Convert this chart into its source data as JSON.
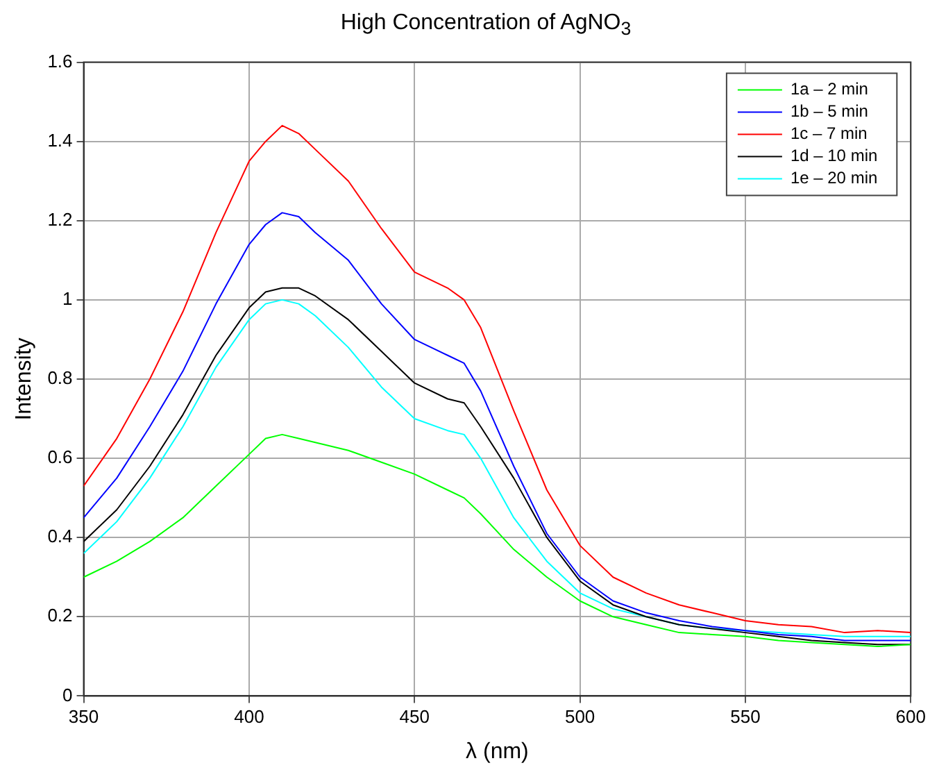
{
  "chart_data": {
    "type": "line",
    "title": "High Concentration of AgNO$_{3}$",
    "xlabel": "λ (nm)",
    "ylabel": "Intensity",
    "x": [
      350,
      360,
      370,
      380,
      390,
      400,
      405,
      410,
      415,
      420,
      430,
      440,
      450,
      460,
      465,
      470,
      480,
      490,
      500,
      510,
      520,
      530,
      540,
      550,
      560,
      570,
      580,
      590,
      600
    ],
    "series": [
      {
        "name": "1a – 2 min",
        "color": "#00ff00",
        "values": [
          0.3,
          0.34,
          0.39,
          0.45,
          0.53,
          0.61,
          0.65,
          0.66,
          0.65,
          0.64,
          0.62,
          0.59,
          0.56,
          0.52,
          0.5,
          0.46,
          0.37,
          0.3,
          0.24,
          0.2,
          0.18,
          0.16,
          0.155,
          0.15,
          0.14,
          0.135,
          0.13,
          0.125,
          0.13
        ]
      },
      {
        "name": "1b – 5 min",
        "color": "#0000ff",
        "values": [
          0.45,
          0.55,
          0.68,
          0.82,
          0.99,
          1.14,
          1.19,
          1.22,
          1.21,
          1.17,
          1.1,
          0.99,
          0.9,
          0.86,
          0.84,
          0.77,
          0.58,
          0.41,
          0.3,
          0.24,
          0.21,
          0.19,
          0.175,
          0.165,
          0.155,
          0.15,
          0.14,
          0.14,
          0.14
        ]
      },
      {
        "name": "1c – 7 min",
        "color": "#ff0000",
        "values": [
          0.53,
          0.65,
          0.8,
          0.97,
          1.17,
          1.35,
          1.4,
          1.44,
          1.42,
          1.38,
          1.3,
          1.18,
          1.07,
          1.03,
          1.0,
          0.93,
          0.72,
          0.52,
          0.38,
          0.3,
          0.26,
          0.23,
          0.21,
          0.19,
          0.18,
          0.175,
          0.16,
          0.165,
          0.16
        ]
      },
      {
        "name": "1d – 10 min",
        "color": "#000000",
        "values": [
          0.39,
          0.47,
          0.58,
          0.71,
          0.86,
          0.98,
          1.02,
          1.03,
          1.03,
          1.01,
          0.95,
          0.87,
          0.79,
          0.75,
          0.74,
          0.68,
          0.55,
          0.4,
          0.29,
          0.23,
          0.2,
          0.18,
          0.17,
          0.16,
          0.15,
          0.14,
          0.135,
          0.13,
          0.13
        ]
      },
      {
        "name": "1e – 20 min",
        "color": "#00ffff",
        "values": [
          0.36,
          0.44,
          0.55,
          0.68,
          0.83,
          0.95,
          0.99,
          1.0,
          0.99,
          0.96,
          0.88,
          0.78,
          0.7,
          0.67,
          0.66,
          0.6,
          0.45,
          0.34,
          0.26,
          0.22,
          0.2,
          0.18,
          0.17,
          0.165,
          0.16,
          0.155,
          0.15,
          0.15,
          0.15
        ]
      }
    ],
    "xlim": [
      350,
      600
    ],
    "xticks": [
      350,
      400,
      450,
      500,
      550,
      600
    ],
    "ylim": [
      0,
      1.6
    ],
    "yticks": [
      0,
      0.2,
      0.4,
      0.6,
      0.8,
      1,
      1.2,
      1.4,
      1.6
    ],
    "grid": true,
    "legend": "top right",
    "marker": "none",
    "line_style": "solid"
  }
}
